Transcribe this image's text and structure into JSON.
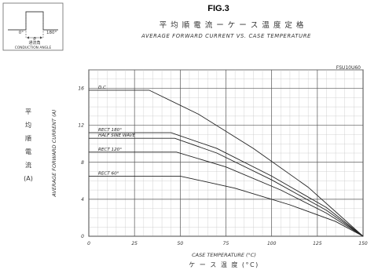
{
  "figure": {
    "label": "FIG.3",
    "title_jp": "平 均 順 電 流 ー ケ ー ス 温 度 定 格",
    "title_en": "AVERAGE FORWARD CURRENT VS. CASE TEMPERATURE",
    "part_number": "FSU10U60"
  },
  "inset": {
    "left_angle": "0°",
    "right_angle": "180°",
    "theta_symbol": "θ",
    "jp_label": "通流角",
    "en_label": "CONDUCTION ANGLE"
  },
  "chart_data": {
    "type": "line",
    "xlabel": "CASE TEMPERATURE (°C)",
    "xlabel_jp": "ケ ー ス 温 度 (°C)",
    "ylabel": "AVERAGE FORWARD CURRENT (A)",
    "ylabel_jp": [
      "平",
      "均",
      "順",
      "電",
      "流",
      "(A)"
    ],
    "xlim": [
      0,
      150
    ],
    "ylim": [
      0,
      18
    ],
    "x_ticks": [
      0,
      25,
      50,
      75,
      100,
      125,
      150
    ],
    "y_ticks": [
      0,
      4,
      8,
      12,
      16
    ],
    "grid": true,
    "series": [
      {
        "name": "D.C",
        "x": [
          0,
          33,
          60,
          90,
          120,
          150
        ],
        "y": [
          15.8,
          15.8,
          13.2,
          9.5,
          5.3,
          0
        ]
      },
      {
        "name": "RECT 180°",
        "x": [
          0,
          45,
          70,
          100,
          130,
          150
        ],
        "y": [
          11.2,
          11.2,
          9.5,
          6.5,
          3.1,
          0
        ]
      },
      {
        "name": "HALF SINE WAVE",
        "x": [
          0,
          47,
          70,
          100,
          130,
          150
        ],
        "y": [
          10.6,
          10.6,
          9.0,
          6.1,
          2.8,
          0
        ]
      },
      {
        "name": "RECT 120°",
        "x": [
          0,
          48,
          75,
          105,
          130,
          150
        ],
        "y": [
          9.1,
          9.1,
          7.5,
          5.0,
          2.5,
          0
        ]
      },
      {
        "name": "RECT 60°",
        "x": [
          0,
          50,
          80,
          110,
          135,
          150
        ],
        "y": [
          6.5,
          6.5,
          5.2,
          3.4,
          1.6,
          0
        ]
      }
    ]
  }
}
